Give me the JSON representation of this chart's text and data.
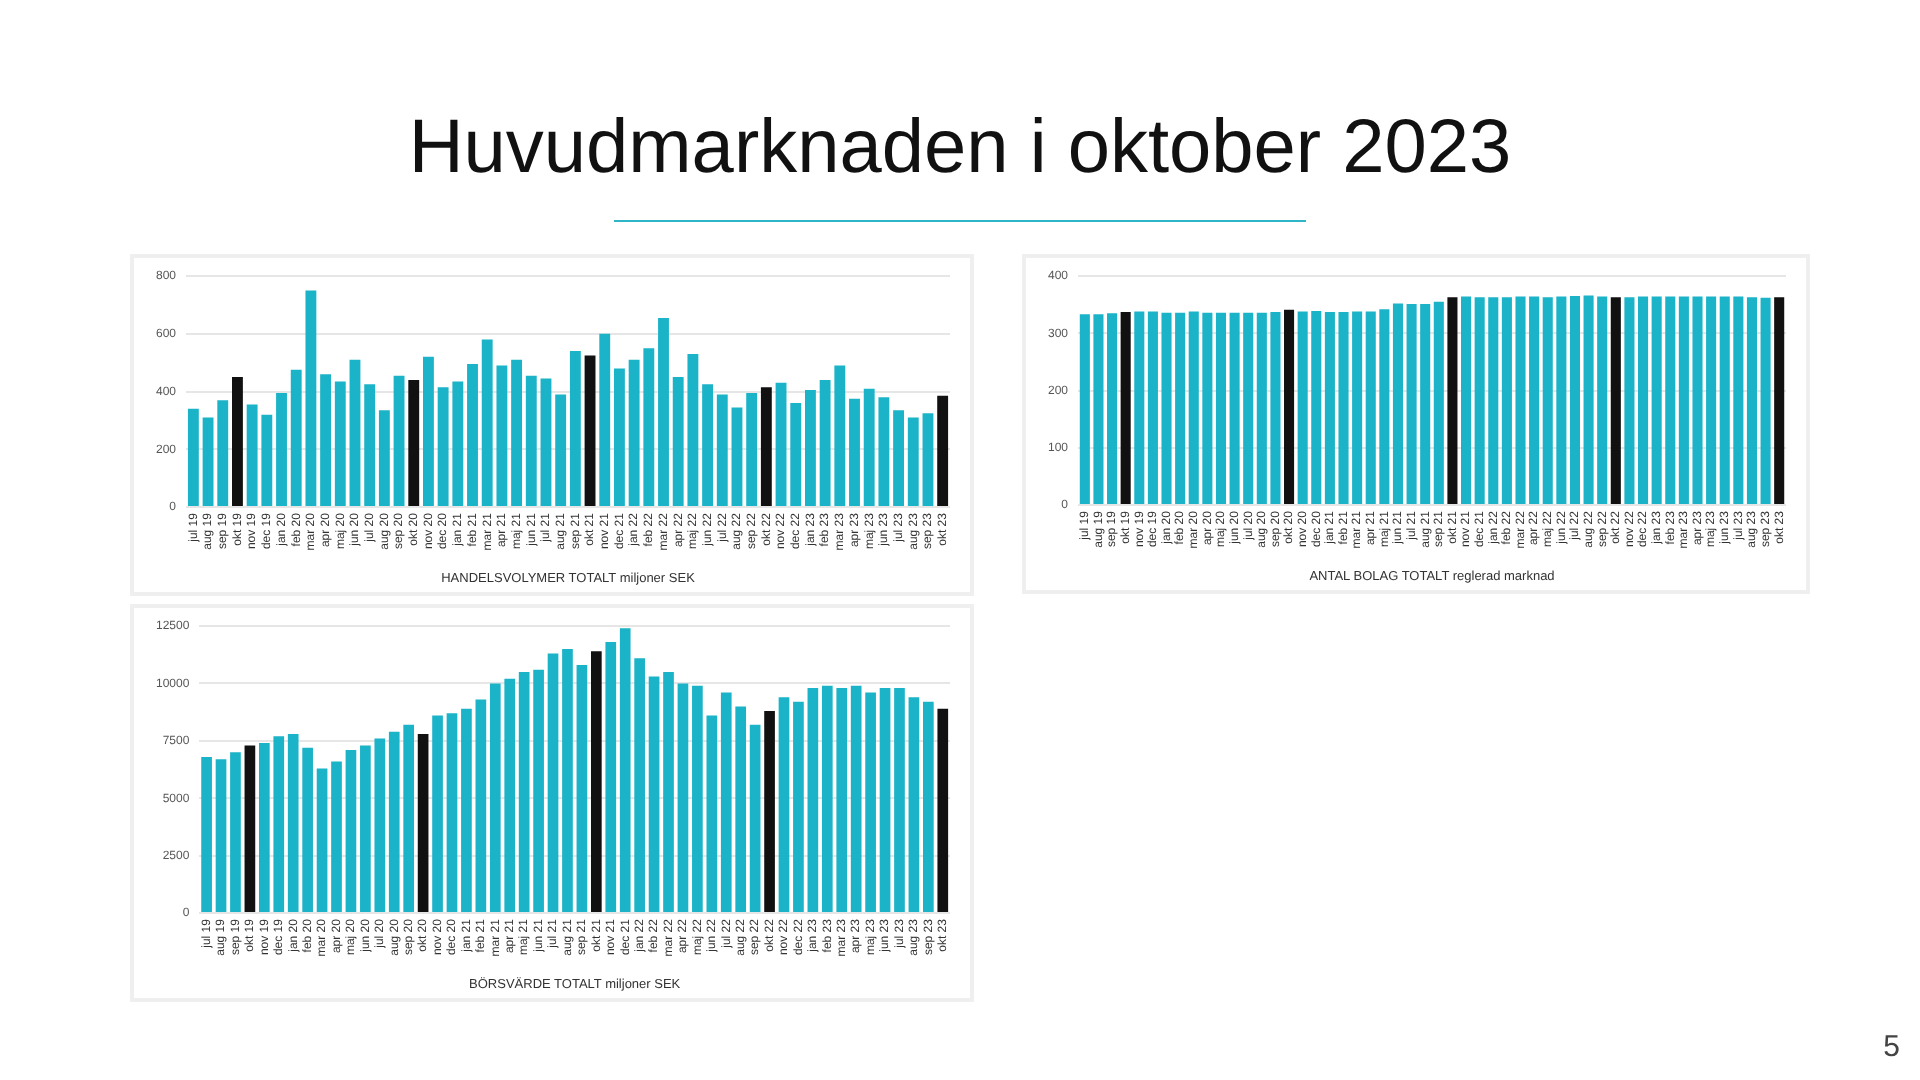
{
  "chart_data": [
    {
      "type": "other",
      "title": "Huvudmarknaden i oktober 2023",
      "annotations": [
        "5"
      ]
    },
    {
      "type": "bar",
      "xlabel": "HANDELSVOLYMER TOTALT miljoner SEK",
      "categories": [
        "jul 19",
        "aug 19",
        "sep 19",
        "okt 19",
        "nov 19",
        "dec 19",
        "jan 20",
        "feb 20",
        "mar 20",
        "apr 20",
        "maj 20",
        "jun 20",
        "jul 20",
        "aug 20",
        "sep 20",
        "okt 20",
        "nov 20",
        "dec 20",
        "jan 21",
        "feb 21",
        "mar 21",
        "apr 21",
        "maj 21",
        "jun 21",
        "jul 21",
        "aug 21",
        "sep 21",
        "okt 21",
        "nov 21",
        "dec 21",
        "jan 22",
        "feb 22",
        "mar 22",
        "apr 22",
        "maj 22",
        "jun 22",
        "jul 22",
        "aug 22",
        "sep 22",
        "okt 22",
        "nov 22",
        "dec 22",
        "jan 23",
        "feb 23",
        "mar 23",
        "apr 23",
        "maj 23",
        "jun 23",
        "jul 23",
        "aug 23",
        "sep 23",
        "okt 23"
      ],
      "values": [
        340,
        310,
        370,
        450,
        355,
        320,
        395,
        475,
        750,
        460,
        435,
        510,
        425,
        335,
        455,
        440,
        520,
        415,
        435,
        495,
        580,
        490,
        510,
        455,
        445,
        390,
        540,
        525,
        600,
        480,
        510,
        550,
        655,
        450,
        530,
        425,
        390,
        345,
        395,
        415,
        430,
        360,
        405,
        440,
        490,
        375,
        410,
        380,
        335,
        310,
        325,
        385
      ],
      "colors": [
        "#1bb3c8",
        "#1bb3c8",
        "#1bb3c8",
        "#111111",
        "#1bb3c8",
        "#1bb3c8",
        "#1bb3c8",
        "#1bb3c8",
        "#1bb3c8",
        "#1bb3c8",
        "#1bb3c8",
        "#1bb3c8",
        "#1bb3c8",
        "#1bb3c8",
        "#1bb3c8",
        "#111111",
        "#1bb3c8",
        "#1bb3c8",
        "#1bb3c8",
        "#1bb3c8",
        "#1bb3c8",
        "#1bb3c8",
        "#1bb3c8",
        "#1bb3c8",
        "#1bb3c8",
        "#1bb3c8",
        "#1bb3c8",
        "#111111",
        "#1bb3c8",
        "#1bb3c8",
        "#1bb3c8",
        "#1bb3c8",
        "#1bb3c8",
        "#1bb3c8",
        "#1bb3c8",
        "#1bb3c8",
        "#1bb3c8",
        "#1bb3c8",
        "#1bb3c8",
        "#111111",
        "#1bb3c8",
        "#1bb3c8",
        "#1bb3c8",
        "#1bb3c8",
        "#1bb3c8",
        "#1bb3c8",
        "#1bb3c8",
        "#1bb3c8",
        "#1bb3c8",
        "#1bb3c8",
        "#1bb3c8",
        "#111111"
      ],
      "ylim": [
        0,
        800
      ],
      "yticks": [
        0,
        200,
        400,
        600,
        800
      ],
      "grid": "y"
    },
    {
      "type": "bar",
      "xlabel": "ANTAL BOLAG TOTALT reglerad marknad",
      "categories": [
        "jul 19",
        "aug 19",
        "sep 19",
        "okt 19",
        "nov 19",
        "dec 19",
        "jan 20",
        "feb 20",
        "mar 20",
        "apr 20",
        "maj 20",
        "jun 20",
        "jul 20",
        "aug 20",
        "sep 20",
        "okt 20",
        "nov 20",
        "dec 20",
        "jan 21",
        "feb 21",
        "mar 21",
        "apr 21",
        "maj 21",
        "jun 21",
        "jul 21",
        "aug 21",
        "sep 21",
        "okt 21",
        "nov 21",
        "dec 21",
        "jan 22",
        "feb 22",
        "mar 22",
        "apr 22",
        "maj 22",
        "jun 22",
        "jul 22",
        "aug 22",
        "sep 22",
        "okt 22",
        "nov 22",
        "dec 22",
        "jan 23",
        "feb 23",
        "mar 23",
        "apr 23",
        "maj 23",
        "jun 23",
        "jul 23",
        "aug 23",
        "sep 23",
        "okt 23"
      ],
      "values": [
        333,
        333,
        335,
        337,
        338,
        338,
        336,
        336,
        338,
        336,
        336,
        336,
        336,
        336,
        337,
        341,
        338,
        339,
        337,
        337,
        338,
        338,
        342,
        352,
        351,
        351,
        355,
        363,
        364,
        363,
        363,
        363,
        364,
        364,
        363,
        364,
        365,
        366,
        364,
        363,
        363,
        364,
        364,
        364,
        364,
        364,
        364,
        364,
        364,
        363,
        362,
        363
      ],
      "colors": [
        "#1bb3c8",
        "#1bb3c8",
        "#1bb3c8",
        "#111111",
        "#1bb3c8",
        "#1bb3c8",
        "#1bb3c8",
        "#1bb3c8",
        "#1bb3c8",
        "#1bb3c8",
        "#1bb3c8",
        "#1bb3c8",
        "#1bb3c8",
        "#1bb3c8",
        "#1bb3c8",
        "#111111",
        "#1bb3c8",
        "#1bb3c8",
        "#1bb3c8",
        "#1bb3c8",
        "#1bb3c8",
        "#1bb3c8",
        "#1bb3c8",
        "#1bb3c8",
        "#1bb3c8",
        "#1bb3c8",
        "#1bb3c8",
        "#111111",
        "#1bb3c8",
        "#1bb3c8",
        "#1bb3c8",
        "#1bb3c8",
        "#1bb3c8",
        "#1bb3c8",
        "#1bb3c8",
        "#1bb3c8",
        "#1bb3c8",
        "#1bb3c8",
        "#1bb3c8",
        "#111111",
        "#1bb3c8",
        "#1bb3c8",
        "#1bb3c8",
        "#1bb3c8",
        "#1bb3c8",
        "#1bb3c8",
        "#1bb3c8",
        "#1bb3c8",
        "#1bb3c8",
        "#1bb3c8",
        "#1bb3c8",
        "#111111"
      ],
      "ylim": [
        0,
        400
      ],
      "yticks": [
        0,
        100,
        200,
        300,
        400
      ],
      "grid": "y"
    },
    {
      "type": "bar",
      "xlabel": "BÖRSVÄRDE TOTALT miljoner SEK",
      "categories": [
        "jul 19",
        "aug 19",
        "sep 19",
        "okt 19",
        "nov 19",
        "dec 19",
        "jan 20",
        "feb 20",
        "mar 20",
        "apr 20",
        "maj 20",
        "jun 20",
        "jul 20",
        "aug 20",
        "sep 20",
        "okt 20",
        "nov 20",
        "dec 20",
        "jan 21",
        "feb 21",
        "mar 21",
        "apr 21",
        "maj 21",
        "jun 21",
        "jul 21",
        "aug 21",
        "sep 21",
        "okt 21",
        "nov 21",
        "dec 21",
        "jan 22",
        "feb 22",
        "mar 22",
        "apr 22",
        "maj 22",
        "jun 22",
        "jul 22",
        "aug 22",
        "sep 22",
        "okt 22",
        "nov 22",
        "dec 22",
        "jan 23",
        "feb 23",
        "mar 23",
        "apr 23",
        "maj 23",
        "jun 23",
        "jul 23",
        "aug 23",
        "sep 23",
        "okt 23"
      ],
      "values": [
        6800,
        6700,
        7000,
        7300,
        7400,
        7700,
        7800,
        7200,
        6300,
        6600,
        7100,
        7300,
        7600,
        7900,
        8200,
        7800,
        8600,
        8700,
        8900,
        9300,
        10000,
        10200,
        10500,
        10600,
        11300,
        11500,
        10800,
        11400,
        11800,
        12400,
        11100,
        10300,
        10500,
        10000,
        9900,
        8600,
        9600,
        9000,
        8200,
        8800,
        9400,
        9200,
        9800,
        9900,
        9800,
        9900,
        9600,
        9800,
        9800,
        9400,
        9200,
        8900
      ],
      "colors": [
        "#1bb3c8",
        "#1bb3c8",
        "#1bb3c8",
        "#111111",
        "#1bb3c8",
        "#1bb3c8",
        "#1bb3c8",
        "#1bb3c8",
        "#1bb3c8",
        "#1bb3c8",
        "#1bb3c8",
        "#1bb3c8",
        "#1bb3c8",
        "#1bb3c8",
        "#1bb3c8",
        "#111111",
        "#1bb3c8",
        "#1bb3c8",
        "#1bb3c8",
        "#1bb3c8",
        "#1bb3c8",
        "#1bb3c8",
        "#1bb3c8",
        "#1bb3c8",
        "#1bb3c8",
        "#1bb3c8",
        "#1bb3c8",
        "#111111",
        "#1bb3c8",
        "#1bb3c8",
        "#1bb3c8",
        "#1bb3c8",
        "#1bb3c8",
        "#1bb3c8",
        "#1bb3c8",
        "#1bb3c8",
        "#1bb3c8",
        "#1bb3c8",
        "#1bb3c8",
        "#111111",
        "#1bb3c8",
        "#1bb3c8",
        "#1bb3c8",
        "#1bb3c8",
        "#1bb3c8",
        "#1bb3c8",
        "#1bb3c8",
        "#1bb3c8",
        "#1bb3c8",
        "#1bb3c8",
        "#1bb3c8",
        "#111111"
      ],
      "ylim": [
        0,
        12500
      ],
      "yticks": [
        0,
        2500,
        5000,
        7500,
        10000,
        12500
      ],
      "grid": "y"
    }
  ]
}
